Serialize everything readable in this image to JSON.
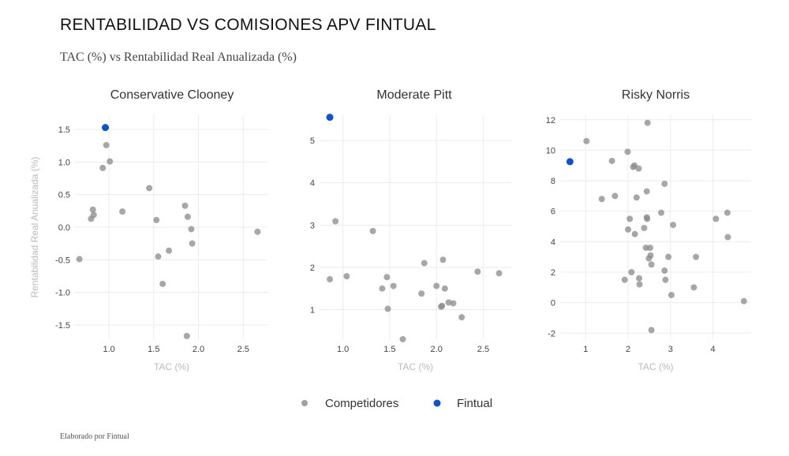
{
  "title": "RENTABILIDAD VS COMISIONES APV FINTUAL",
  "subtitle": "TAC (%) vs Rentabilidad Real Anualizada (%)",
  "footer": "Elaborado por Fintual",
  "legend": {
    "competitors": "Competidores",
    "fintual": "Fintual",
    "placement": "bottom"
  },
  "colors": {
    "competitors": "#8a8a8a",
    "fintual": "#1152c8",
    "grid": "#ececec"
  },
  "chart_data": [
    {
      "type": "scatter",
      "title": "Conservative Clooney",
      "xlabel": "TAC (%)",
      "ylabel": "Rentabilidad Real Anualizada (%)",
      "xlim": [
        0.62,
        2.78
      ],
      "ylim": [
        -1.72,
        1.72
      ],
      "xticks": [
        1.0,
        1.5,
        2.0,
        2.5
      ],
      "xtick_labels": [
        "1.0",
        "1.5",
        "2.0",
        "2.5"
      ],
      "yticks": [
        -1.5,
        -1.0,
        -0.5,
        0.0,
        0.5,
        1.0,
        1.5
      ],
      "ytick_labels": [
        "-1.5",
        "-1.0",
        "-0.5",
        "0.0",
        "0.5",
        "1.0",
        "1.5"
      ],
      "grid": true,
      "series": [
        {
          "name": "Competidores",
          "points": [
            [
              0.67,
              -0.49
            ],
            [
              0.8,
              0.13
            ],
            [
              0.82,
              0.27
            ],
            [
              0.83,
              0.19
            ],
            [
              0.93,
              0.91
            ],
            [
              0.97,
              1.26
            ],
            [
              1.01,
              1.01
            ],
            [
              1.15,
              0.24
            ],
            [
              1.45,
              0.6
            ],
            [
              1.53,
              0.11
            ],
            [
              1.55,
              -0.45
            ],
            [
              1.6,
              -0.87
            ],
            [
              1.67,
              -0.36
            ],
            [
              1.85,
              0.33
            ],
            [
              1.88,
              0.16
            ],
            [
              1.92,
              -0.03
            ],
            [
              1.93,
              -0.25
            ],
            [
              1.87,
              -1.67
            ],
            [
              2.66,
              -0.07
            ]
          ]
        },
        {
          "name": "Fintual",
          "points": [
            [
              0.96,
              1.53
            ]
          ]
        }
      ]
    },
    {
      "type": "scatter",
      "title": "Moderate Pitt",
      "xlabel": "TAC (%)",
      "ylabel": "",
      "xlim": [
        0.75,
        2.8
      ],
      "ylim": [
        0.3,
        5.6
      ],
      "xticks": [
        1.0,
        1.5,
        2.0,
        2.5
      ],
      "xtick_labels": [
        "1.0",
        "1.5",
        "2.0",
        "2.5"
      ],
      "yticks": [
        1,
        2,
        3,
        4,
        5
      ],
      "ytick_labels": [
        "1",
        "2",
        "3",
        "4",
        "5"
      ],
      "grid": true,
      "series": [
        {
          "name": "Competidores",
          "points": [
            [
              0.86,
              1.72
            ],
            [
              0.92,
              3.09
            ],
            [
              1.04,
              1.79
            ],
            [
              1.32,
              2.86
            ],
            [
              1.42,
              1.5
            ],
            [
              1.47,
              1.77
            ],
            [
              1.48,
              1.02
            ],
            [
              1.54,
              1.56
            ],
            [
              1.64,
              0.3
            ],
            [
              1.84,
              1.38
            ],
            [
              1.87,
              2.1
            ],
            [
              2.0,
              1.56
            ],
            [
              2.05,
              1.07
            ],
            [
              2.06,
              1.09
            ],
            [
              2.07,
              2.18
            ],
            [
              2.09,
              1.5
            ],
            [
              2.13,
              1.17
            ],
            [
              2.18,
              1.15
            ],
            [
              2.27,
              0.82
            ],
            [
              2.44,
              1.9
            ],
            [
              2.67,
              1.86
            ]
          ]
        },
        {
          "name": "Fintual",
          "points": [
            [
              0.86,
              5.55
            ]
          ]
        }
      ]
    },
    {
      "type": "scatter",
      "title": "Risky Norris",
      "xlabel": "TAC (%)",
      "ylabel": "",
      "xlim": [
        0.4,
        4.9
      ],
      "ylim": [
        -2.4,
        12.3
      ],
      "xticks": [
        1,
        2,
        3,
        4
      ],
      "xtick_labels": [
        "1",
        "2",
        "3",
        "4"
      ],
      "yticks": [
        -2,
        0,
        2,
        4,
        6,
        8,
        10,
        12
      ],
      "ytick_labels": [
        "-2",
        "0",
        "2",
        "4",
        "6",
        "8",
        "10",
        "12"
      ],
      "grid": true,
      "series": [
        {
          "name": "Competidores",
          "points": [
            [
              1.02,
              10.6
            ],
            [
              1.38,
              6.8
            ],
            [
              1.62,
              9.3
            ],
            [
              1.69,
              7.0
            ],
            [
              1.92,
              1.5
            ],
            [
              1.99,
              9.9
            ],
            [
              2.0,
              4.8
            ],
            [
              2.04,
              5.5
            ],
            [
              2.08,
              2.0
            ],
            [
              2.12,
              8.9
            ],
            [
              2.15,
              9.0
            ],
            [
              2.16,
              4.5
            ],
            [
              2.2,
              6.9
            ],
            [
              2.25,
              8.8
            ],
            [
              2.26,
              1.6
            ],
            [
              2.27,
              1.2
            ],
            [
              2.38,
              4.9
            ],
            [
              2.42,
              3.6
            ],
            [
              2.44,
              7.3
            ],
            [
              2.44,
              5.6
            ],
            [
              2.45,
              5.5
            ],
            [
              2.46,
              11.8
            ],
            [
              2.49,
              2.9
            ],
            [
              2.52,
              3.6
            ],
            [
              2.53,
              3.1
            ],
            [
              2.55,
              2.5
            ],
            [
              2.55,
              -1.8
            ],
            [
              2.78,
              5.9
            ],
            [
              2.86,
              7.8
            ],
            [
              2.86,
              2.1
            ],
            [
              2.88,
              1.5
            ],
            [
              2.95,
              3.0
            ],
            [
              3.02,
              0.5
            ],
            [
              3.06,
              5.1
            ],
            [
              3.55,
              1.0
            ],
            [
              3.6,
              3.0
            ],
            [
              4.07,
              5.5
            ],
            [
              4.34,
              5.9
            ],
            [
              4.35,
              4.3
            ],
            [
              4.73,
              0.1
            ]
          ]
        },
        {
          "name": "Fintual",
          "points": [
            [
              0.63,
              9.25
            ]
          ]
        }
      ]
    }
  ]
}
